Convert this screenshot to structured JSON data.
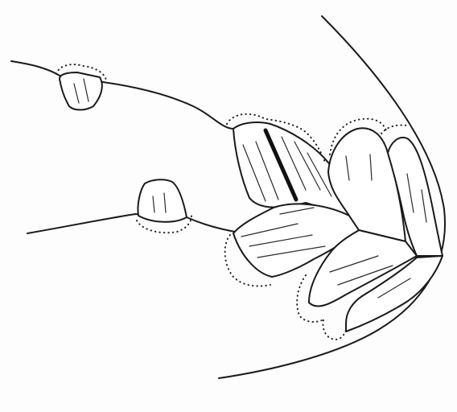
{
  "drawing": {
    "background_color": "#fdfdfd",
    "line_color": "#1a1a1a"
  }
}
